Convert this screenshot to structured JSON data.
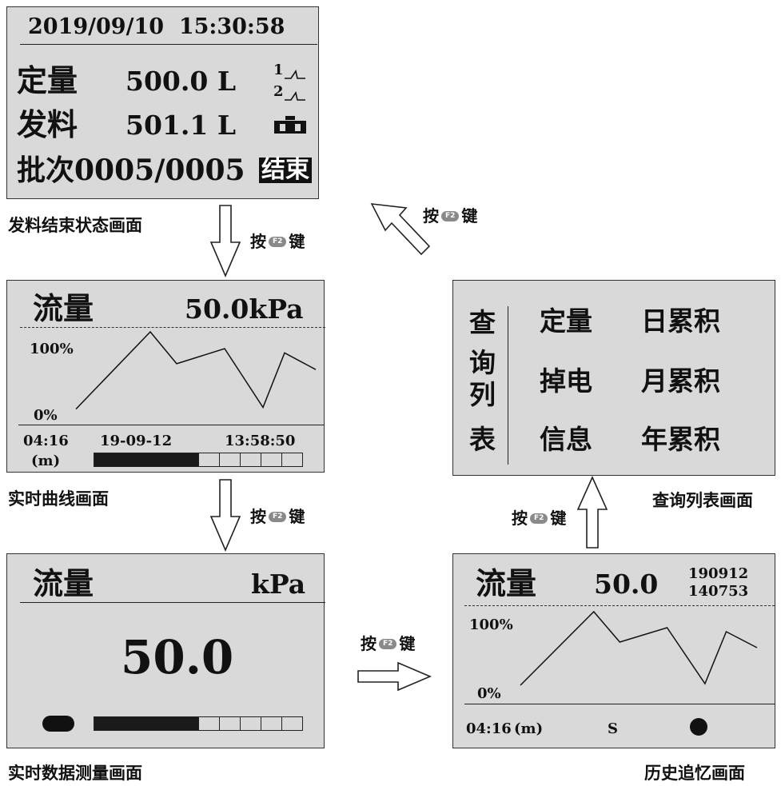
{
  "key_label": {
    "prefix": "按",
    "key": "F2",
    "suffix": "键"
  },
  "screens": {
    "end_state": {
      "caption": "发料结束状态画面",
      "datetime": "2019/09/10  15:30:58",
      "quota_label": "定量",
      "quota_value": "500.0 L",
      "valve1": "1",
      "valve2": "2",
      "dispense_label": "发料",
      "dispense_value": "501.1 L",
      "batch_text": "批次0005/0005",
      "status_badge": "结束"
    },
    "realtime_curve": {
      "caption": "实时曲线画面",
      "title": "流量",
      "value": "50.0kPa",
      "y_max_label": "100%",
      "y_min_label": "0%",
      "time_span": "04:16",
      "unit": "(m)",
      "date": "19-09-12",
      "time": "13:58:50",
      "progress": 0.5
    },
    "realtime_data": {
      "caption": "实时数据测量画面",
      "title": "流量",
      "unit": "kPa",
      "value": "50.0",
      "progress": 0.5
    },
    "history": {
      "caption": "历史追忆画面",
      "title": "流量",
      "value": "50.0",
      "date": "190912",
      "time": "140753",
      "y_max_label": "100%",
      "y_min_label": "0%",
      "time_span": "04:16",
      "unit": "(m)",
      "mode": "S"
    },
    "query_list": {
      "caption": "查询列表画面",
      "side_label": [
        "查",
        "询",
        "列",
        "表"
      ],
      "items": [
        [
          "定量",
          "日累积"
        ],
        [
          "掉电",
          "月累积"
        ],
        [
          "信息",
          "年累积"
        ]
      ]
    }
  },
  "chart_data": {
    "type": "line",
    "description": "trend sparkline shown in curve screens",
    "y_range_label": [
      "0%",
      "100%"
    ],
    "values": [
      0.08,
      1.0,
      0.62,
      0.8,
      0.1,
      0.75,
      0.55
    ]
  }
}
